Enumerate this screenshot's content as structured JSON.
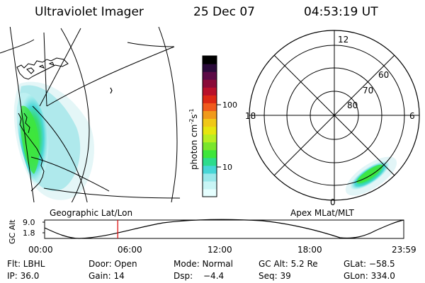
{
  "header": {
    "title": "Ultraviolet Imager",
    "date": "25 Dec 07",
    "time": "04:53:19 UT"
  },
  "colorbar": {
    "unit_label": "photon cm",
    "unit_exp1": "-2",
    "unit_s": "s",
    "unit_exp2": "-1",
    "tick_100": "100",
    "tick_10": "10",
    "colors": [
      "#e6ffff",
      "#c8f5f5",
      "#9ae8ea",
      "#47d6d6",
      "#2ddc8c",
      "#3ee63a",
      "#7ae62c",
      "#b8ee22",
      "#e6e610",
      "#f0c818",
      "#f09a1c",
      "#f05a1c",
      "#dc2814",
      "#b8102a",
      "#8a0a38",
      "#5c0a46",
      "#2a0a3a",
      "#000000"
    ]
  },
  "left_panel": {
    "caption": "Geographic Lat/Lon"
  },
  "right_panel": {
    "caption": "Apex MLat/MLT",
    "mlt_labels": {
      "top": "12",
      "left": "18",
      "right": "6",
      "bottom": "0"
    },
    "lat_labels": [
      "60",
      "70",
      "80"
    ]
  },
  "timeline": {
    "axis_label": "GC Alt",
    "y_ticks": [
      "9.0",
      "1.8"
    ],
    "x_ticks": [
      "00:00",
      "06:00",
      "12:00",
      "18:00",
      "23:59"
    ],
    "marker_time": "04:53",
    "marker_color": "#dc0000"
  },
  "info": {
    "flt": "Flt: LBHL",
    "door": "Door: Open",
    "mode": "Mode: Normal",
    "gc_alt": "GC Alt: 5.2 Re",
    "glat": "GLat: −58.5",
    "ip": "IP: 36.0",
    "gain": "Gain: 14",
    "dsp_label": "Dsp:",
    "dsp_value": "−4.4",
    "seq": "Seq: 39",
    "glon": "GLon: 334.0"
  }
}
